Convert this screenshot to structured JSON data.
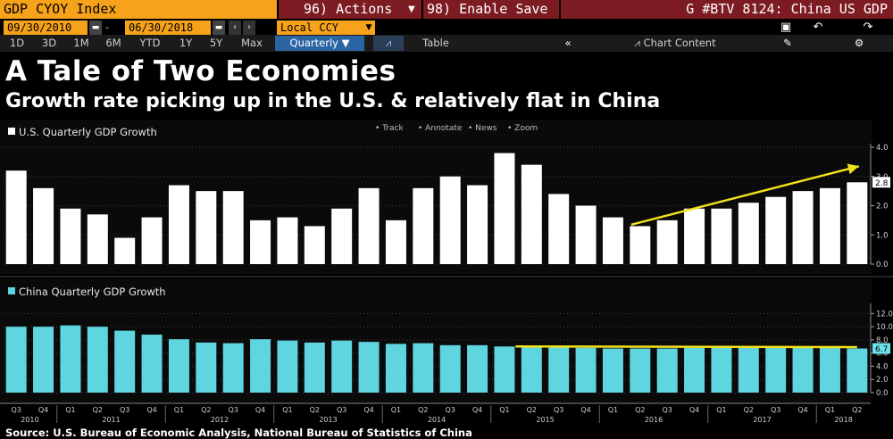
{
  "topbar": {
    "ticker": "GDP CYOY Index",
    "actions": "96) Actions",
    "enable_save": "98) Enable Save",
    "function": "G #BTV 8124: China US GDP"
  },
  "date_range": {
    "start": "09/30/2010",
    "end": "06/30/2018",
    "currency": "Local CCY"
  },
  "periods": [
    "1D",
    "3D",
    "1M",
    "6M",
    "YTD",
    "1Y",
    "5Y",
    "Max"
  ],
  "frequency": "Quarterly",
  "view_table": "Table",
  "chart_content": "Chart Content",
  "toolbar_small": [
    "Track",
    "Annotate",
    "News",
    "Zoom"
  ],
  "title": "A Tale of Two Economies",
  "subtitle": "Growth rate picking up in the U.S. & relatively flat in China",
  "source": "Source: U.S. Bureau of Economic Analysis, National Bureau of Statistics of China",
  "colors": {
    "us_bars": "#ffffff",
    "china_bars": "#5fd5df",
    "trend_line": "#f2e21b",
    "value_tag": "#6be3ec",
    "header_orange": "#f6a21a",
    "header_red": "#7d1b22"
  },
  "chart_data": [
    {
      "type": "bar",
      "legend": "U.S. Quarterly GDP Growth",
      "categories": [
        "Q3",
        "Q4",
        "Q1",
        "Q2",
        "Q3",
        "Q4",
        "Q1",
        "Q2",
        "Q3",
        "Q4",
        "Q1",
        "Q2",
        "Q3",
        "Q4",
        "Q1",
        "Q2",
        "Q3",
        "Q4",
        "Q1",
        "Q2",
        "Q3",
        "Q4",
        "Q1",
        "Q2",
        "Q3",
        "Q4",
        "Q1",
        "Q2",
        "Q3",
        "Q4",
        "Q1",
        "Q2"
      ],
      "years": [
        {
          "label": "2010",
          "start": 0,
          "end": 1
        },
        {
          "label": "2011",
          "start": 2,
          "end": 5
        },
        {
          "label": "2012",
          "start": 6,
          "end": 9
        },
        {
          "label": "2013",
          "start": 10,
          "end": 13
        },
        {
          "label": "2014",
          "start": 14,
          "end": 17
        },
        {
          "label": "2015",
          "start": 18,
          "end": 21
        },
        {
          "label": "2016",
          "start": 22,
          "end": 25
        },
        {
          "label": "2017",
          "start": 26,
          "end": 29
        },
        {
          "label": "2018",
          "start": 30,
          "end": 31
        }
      ],
      "values": [
        3.2,
        2.6,
        1.9,
        1.7,
        0.9,
        1.6,
        2.7,
        2.5,
        2.5,
        1.5,
        1.6,
        1.3,
        1.9,
        2.6,
        1.5,
        2.6,
        3.0,
        2.7,
        3.8,
        3.4,
        2.4,
        2.0,
        1.6,
        1.3,
        1.5,
        1.9,
        1.9,
        2.1,
        2.3,
        2.5,
        2.6,
        2.8
      ],
      "last_value": "2.8",
      "ylim": [
        0,
        4.0
      ],
      "yticks": [
        "4.0",
        "3.0",
        "2.0",
        "1.0",
        "0.0"
      ],
      "trend": {
        "from_index": 23,
        "from_value": 1.35,
        "to_index": 31,
        "to_value": 3.35,
        "arrow": true
      }
    },
    {
      "type": "bar",
      "legend": "China Quarterly GDP Growth",
      "categories": [
        "Q3",
        "Q4",
        "Q1",
        "Q2",
        "Q3",
        "Q4",
        "Q1",
        "Q2",
        "Q3",
        "Q4",
        "Q1",
        "Q2",
        "Q3",
        "Q4",
        "Q1",
        "Q2",
        "Q3",
        "Q4",
        "Q1",
        "Q2",
        "Q3",
        "Q4",
        "Q1",
        "Q2",
        "Q3",
        "Q4",
        "Q1",
        "Q2",
        "Q3",
        "Q4",
        "Q1",
        "Q2"
      ],
      "values": [
        10.0,
        10.0,
        10.2,
        10.0,
        9.4,
        8.8,
        8.1,
        7.6,
        7.5,
        8.1,
        7.9,
        7.6,
        7.9,
        7.7,
        7.4,
        7.5,
        7.2,
        7.2,
        7.0,
        7.0,
        6.9,
        6.8,
        6.7,
        6.7,
        6.7,
        6.8,
        6.9,
        6.9,
        6.8,
        6.8,
        6.8,
        6.7
      ],
      "last_value": "6.7",
      "ylim": [
        0,
        13.0
      ],
      "yticks": [
        "12.0",
        "10.0",
        "8.0",
        "6.0",
        "4.0",
        "2.0",
        "0.0"
      ],
      "trend": {
        "from_index": 19,
        "from_value": 7.0,
        "to_index": 31,
        "to_value": 6.9,
        "arrow": false
      }
    }
  ]
}
